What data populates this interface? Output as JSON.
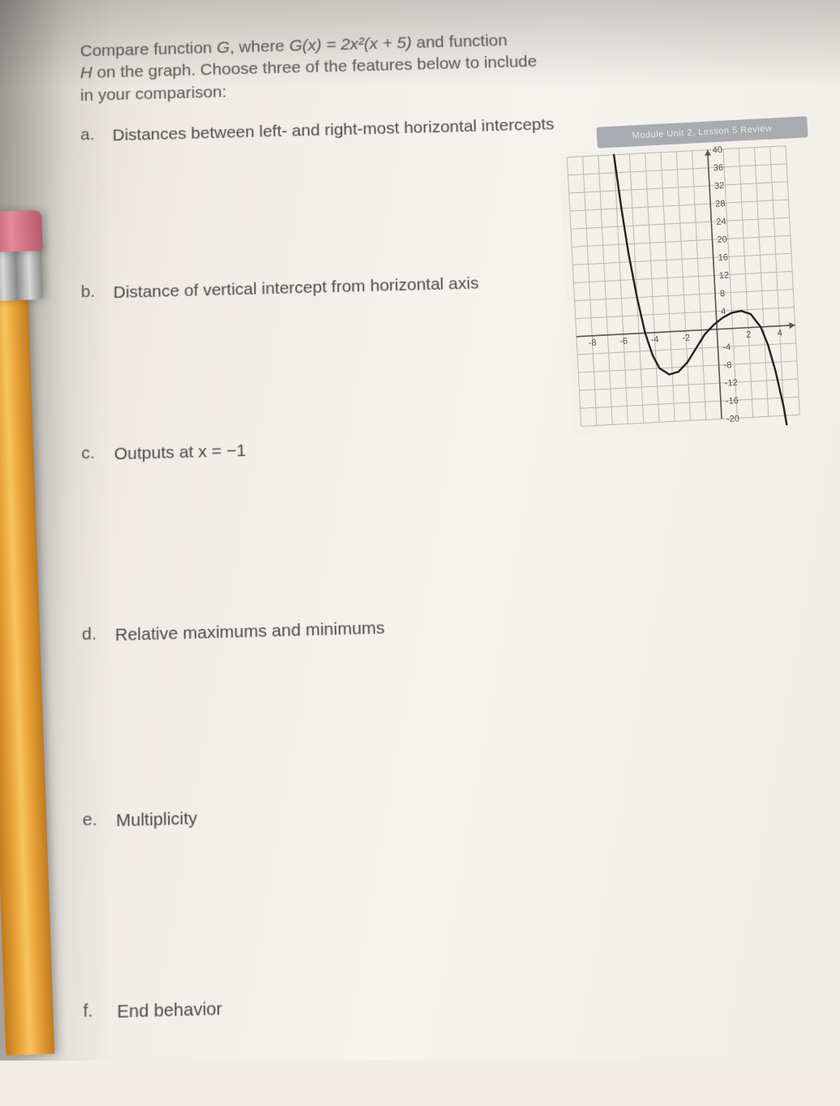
{
  "intro": {
    "line1_prefix": "Compare function ",
    "G": "G",
    "line1_mid": ", where ",
    "Gx": "G(x) = 2x²(x + 5)",
    "line1_suffix": " and function",
    "line2_prefix": "H",
    "line2_rest": " on the graph. Choose three of the features below to include",
    "line3": "in your comparison:"
  },
  "items": {
    "a": {
      "letter": "a.",
      "text": "Distances between left- and right-most horizontal intercepts"
    },
    "b": {
      "letter": "b.",
      "text": "Distance of vertical intercept from horizontal axis"
    },
    "c": {
      "letter": "c.",
      "text": "Outputs at x = −1"
    },
    "d": {
      "letter": "d.",
      "text": "Relative maximums and minimums"
    },
    "e": {
      "letter": "e.",
      "text": "Multiplicity"
    },
    "f": {
      "letter": "f.",
      "text": "End behavior"
    }
  },
  "header_tag": "Module Unit 2, Lesson 5 Review",
  "graph": {
    "type": "line",
    "xlim": [
      -9,
      5
    ],
    "ylim": [
      -20,
      40
    ],
    "xtick_step": 1,
    "ytick_step": 4,
    "x_labels": [
      -8,
      -6,
      -4,
      -2,
      2,
      4
    ],
    "y_labels": [
      40,
      36,
      32,
      28,
      24,
      20,
      16,
      12,
      8,
      4,
      -4,
      -8,
      -12,
      -16,
      -20
    ],
    "grid_color": "#b8b8b8",
    "axis_color": "#555555",
    "curve_color": "#222222",
    "background_color": "#f3efe9",
    "label_fontsize": 11,
    "curve_width": 2.4,
    "series": [
      {
        "x": -6.0,
        "y": 40
      },
      {
        "x": -5.7,
        "y": 28
      },
      {
        "x": -5.4,
        "y": 18
      },
      {
        "x": -5.0,
        "y": 8
      },
      {
        "x": -4.6,
        "y": 0
      },
      {
        "x": -4.2,
        "y": -5
      },
      {
        "x": -3.8,
        "y": -8
      },
      {
        "x": -3.2,
        "y": -9.5
      },
      {
        "x": -2.6,
        "y": -9
      },
      {
        "x": -2.0,
        "y": -7
      },
      {
        "x": -1.4,
        "y": -4
      },
      {
        "x": -0.8,
        "y": -1
      },
      {
        "x": -0.2,
        "y": 1
      },
      {
        "x": 0.4,
        "y": 2.5
      },
      {
        "x": 1.0,
        "y": 3.5
      },
      {
        "x": 1.6,
        "y": 3.8
      },
      {
        "x": 2.2,
        "y": 3
      },
      {
        "x": 2.8,
        "y": 0
      },
      {
        "x": 3.2,
        "y": -4
      },
      {
        "x": 3.6,
        "y": -10
      },
      {
        "x": 4.0,
        "y": -18
      },
      {
        "x": 4.2,
        "y": -24
      }
    ]
  }
}
